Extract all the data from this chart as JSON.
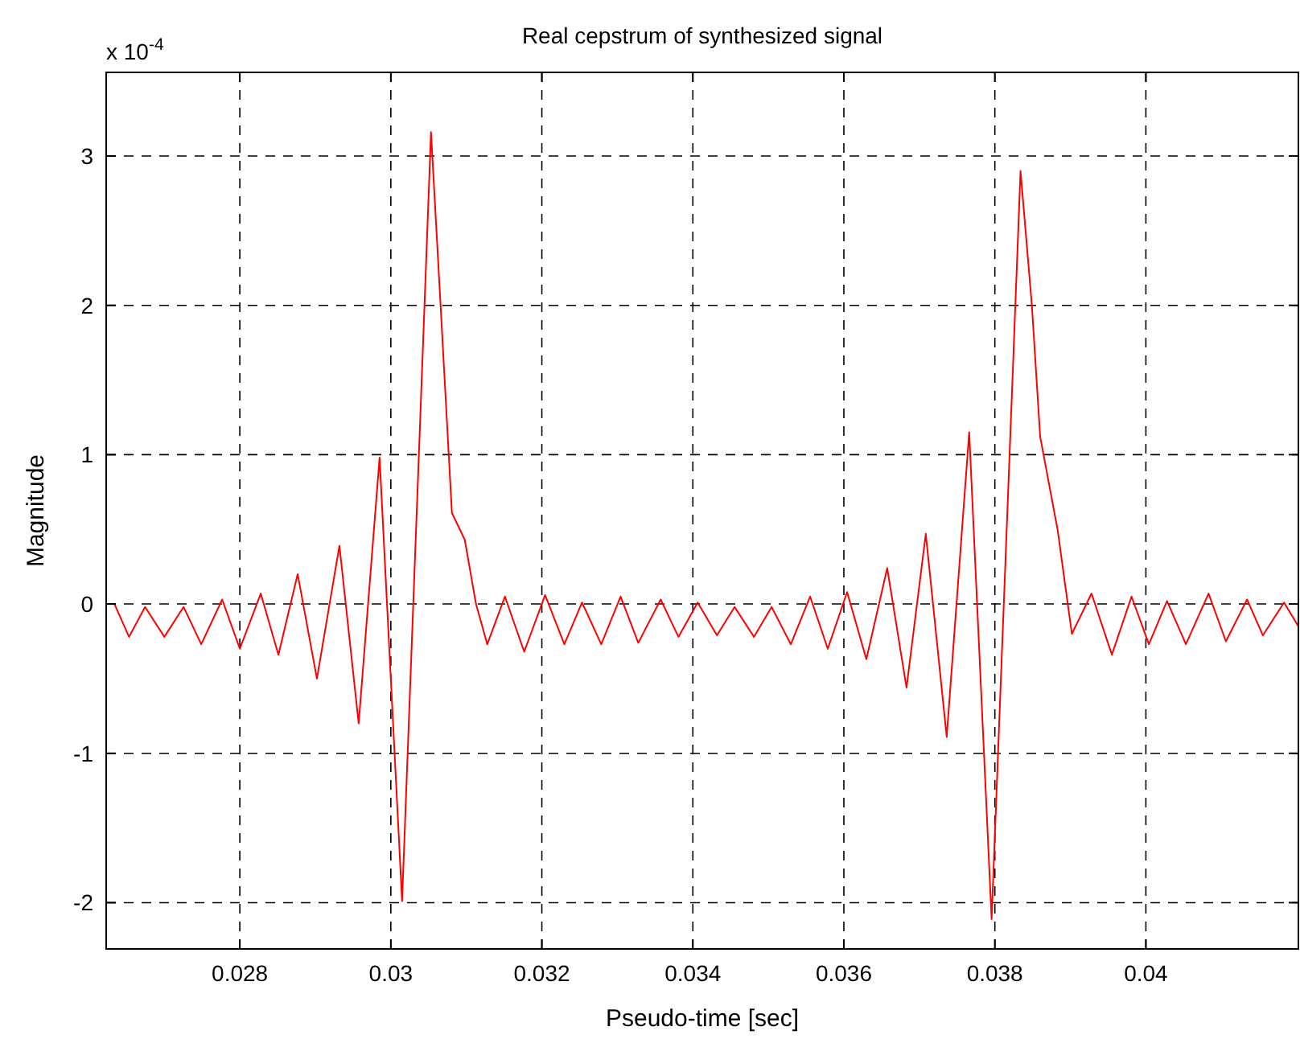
{
  "chart_data": {
    "type": "line",
    "title": "Real cepstrum of synthesized signal",
    "xlabel": "Pseudo-time [sec]",
    "ylabel": "Magnitude",
    "annotations": [
      "x 10$^{-4}$"
    ],
    "xlim": [
      0.02623,
      0.04202
    ],
    "ylim": [
      -2.31,
      3.56
    ],
    "xticks": [
      0.028,
      0.03,
      0.032,
      0.034,
      0.036,
      0.038,
      0.04
    ],
    "yticks": [
      -2,
      -1,
      0,
      1,
      2,
      3
    ],
    "grid": true,
    "x": [
      0.026255,
      0.02634,
      0.026532,
      0.026745,
      0.027,
      0.027255,
      0.027489,
      0.027766,
      0.028,
      0.028277,
      0.028511,
      0.028766,
      0.029021,
      0.029319,
      0.029574,
      0.029851,
      0.030149,
      0.030532,
      0.03066,
      0.030809,
      0.030979,
      0.031128,
      0.031277,
      0.031511,
      0.031766,
      0.032043,
      0.032298,
      0.032532,
      0.032787,
      0.033043,
      0.033277,
      0.033574,
      0.033809,
      0.034064,
      0.034319,
      0.034553,
      0.034809,
      0.035043,
      0.035298,
      0.035553,
      0.035787,
      0.036043,
      0.036298,
      0.036574,
      0.03683,
      0.037085,
      0.037362,
      0.03766,
      0.037957,
      0.03834,
      0.03849,
      0.0386,
      0.03883,
      0.03902,
      0.03928,
      0.03955,
      0.03981,
      0.04004,
      0.04028,
      0.04053,
      0.04083,
      0.04106,
      0.04134,
      0.04155,
      0.04183,
      0.04202
    ],
    "series": [
      {
        "color": "#ff0000",
        "values": [
          0.0,
          0.0,
          -0.22,
          -0.02,
          -0.22,
          -0.02,
          -0.27,
          0.03,
          -0.3,
          0.07,
          -0.34,
          0.2,
          -0.5,
          0.39,
          -0.8,
          0.98,
          -1.99,
          3.16,
          1.99,
          0.61,
          0.43,
          0.0,
          -0.27,
          0.05,
          -0.32,
          0.06,
          -0.27,
          0.01,
          -0.27,
          0.05,
          -0.26,
          0.03,
          -0.22,
          0.01,
          -0.21,
          -0.02,
          -0.22,
          -0.02,
          -0.27,
          0.05,
          -0.3,
          0.08,
          -0.37,
          0.24,
          -0.56,
          0.47,
          -0.89,
          1.15,
          -2.11,
          2.9,
          2.0,
          1.12,
          0.5,
          -0.2,
          0.07,
          -0.34,
          0.05,
          -0.27,
          0.02,
          -0.27,
          0.07,
          -0.25,
          0.03,
          -0.21,
          0.01,
          -0.15
        ]
      }
    ]
  }
}
